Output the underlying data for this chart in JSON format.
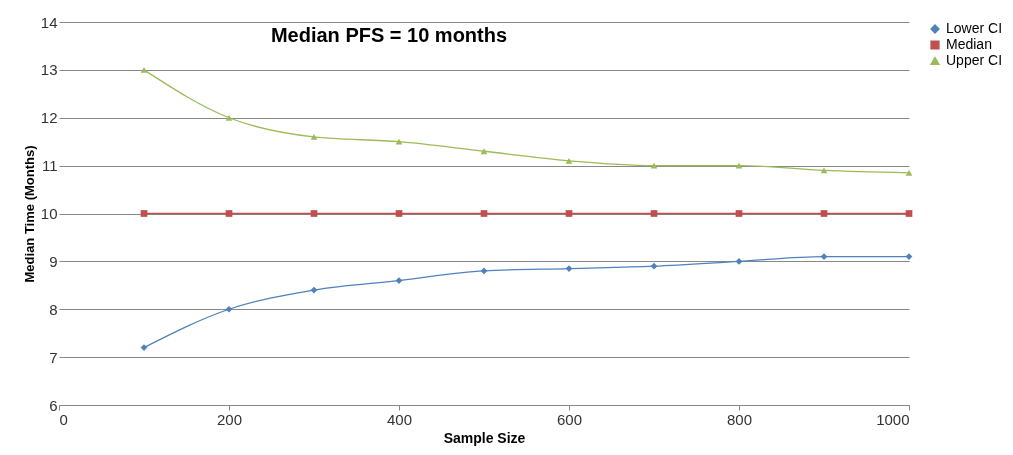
{
  "chart_data": {
    "type": "line",
    "title": "Median PFS = 10 months",
    "xlabel": "Sample Size",
    "ylabel": "Median Time (Months)",
    "x": [
      100,
      200,
      300,
      400,
      500,
      600,
      700,
      800,
      900,
      1000
    ],
    "series": [
      {
        "name": "Lower CI",
        "color": "#4f81bd",
        "marker": "diamond",
        "values": [
          7.2,
          8.0,
          8.4,
          8.6,
          8.8,
          8.85,
          8.9,
          9.0,
          9.1,
          9.1
        ]
      },
      {
        "name": "Median",
        "color": "#c0504d",
        "marker": "square",
        "values": [
          10,
          10,
          10,
          10,
          10,
          10,
          10,
          10,
          10,
          10
        ]
      },
      {
        "name": "Upper CI",
        "color": "#9bbb59",
        "marker": "triangle",
        "values": [
          13.0,
          12.0,
          11.6,
          11.5,
          11.3,
          11.1,
          11.0,
          11.0,
          10.9,
          10.85
        ]
      }
    ],
    "xlim": [
      0,
      1000
    ],
    "xticks": [
      0,
      200,
      400,
      600,
      800,
      1000
    ],
    "ylim": [
      6,
      14
    ],
    "yticks": [
      6,
      7,
      8,
      9,
      10,
      11,
      12,
      13,
      14
    ],
    "grid": "y",
    "legend": "right",
    "line_style": "solid"
  }
}
